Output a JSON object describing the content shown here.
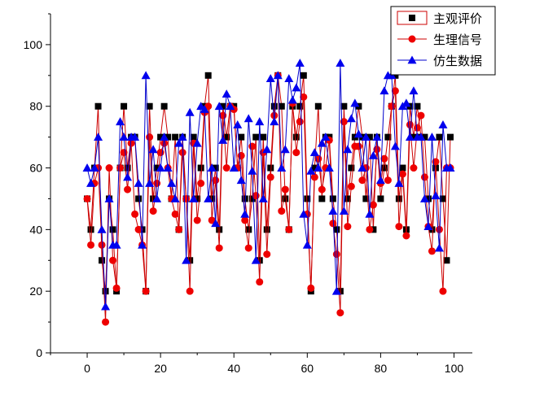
{
  "chart_data": {
    "type": "line",
    "title": "",
    "xlabel": "",
    "ylabel": "",
    "xlim": [
      -10,
      105
    ],
    "ylim": [
      0,
      110
    ],
    "x_ticks": [
      0,
      20,
      40,
      60,
      80,
      100
    ],
    "y_ticks": [
      0,
      20,
      40,
      60,
      80,
      100
    ],
    "grid": false,
    "legend_position": "top-right",
    "series": [
      {
        "name": "主观评价",
        "line_color": "#cc0000",
        "marker_color": "#000000",
        "marker": "square",
        "values": [
          50,
          40,
          60,
          80,
          30,
          20,
          50,
          40,
          20,
          60,
          80,
          60,
          70,
          70,
          50,
          40,
          20,
          80,
          50,
          60,
          70,
          80,
          70,
          50,
          70,
          40,
          70,
          50,
          30,
          70,
          50,
          60,
          80,
          90,
          50,
          60,
          40,
          80,
          70,
          80,
          80,
          60,
          70,
          50,
          40,
          50,
          70,
          30,
          70,
          40,
          60,
          80,
          90,
          80,
          50,
          40,
          80,
          70,
          80,
          90,
          50,
          20,
          60,
          80,
          50,
          70,
          70,
          50,
          40,
          20,
          80,
          50,
          60,
          70,
          80,
          70,
          50,
          70,
          40,
          70,
          50,
          60,
          70,
          80,
          90,
          50,
          60,
          40,
          80,
          70,
          80,
          70,
          70,
          50,
          40,
          60,
          70,
          50,
          30,
          70
        ]
      },
      {
        "name": "生理信号",
        "line_color": "#cc0000",
        "marker_color": "#ee0000",
        "marker": "circle",
        "values": [
          50,
          35,
          55,
          60,
          35,
          10,
          60,
          30,
          21,
          60,
          65,
          53,
          68,
          45,
          40,
          35,
          20,
          70,
          46,
          55,
          65,
          68,
          60,
          50,
          45,
          40,
          65,
          50,
          20,
          68,
          43,
          55,
          78,
          80,
          43,
          56,
          34,
          77,
          60,
          80,
          79,
          60,
          64,
          43,
          34,
          67,
          51,
          23,
          65,
          32,
          57,
          77,
          90,
          46,
          53,
          40,
          81,
          65,
          75,
          83,
          45,
          21,
          57,
          63,
          53,
          60,
          69,
          42,
          32,
          13,
          75,
          41,
          54,
          67,
          67,
          56,
          60,
          40,
          48,
          66,
          55,
          63,
          56,
          80,
          85,
          41,
          58,
          38,
          74,
          60,
          73,
          77,
          57,
          41,
          33,
          62,
          40,
          20,
          60,
          60
        ]
      },
      {
        "name": "仿生数据",
        "line_color": "#0000cc",
        "marker_color": "#0000ee",
        "marker": "triangle",
        "values": [
          60,
          55,
          60,
          70,
          40,
          15,
          50,
          35,
          35,
          75,
          70,
          57,
          70,
          70,
          55,
          35,
          90,
          55,
          66,
          50,
          60,
          70,
          60,
          55,
          50,
          68,
          70,
          30,
          78,
          50,
          68,
          80,
          79,
          50,
          60,
          42,
          80,
          69,
          84,
          80,
          60,
          74,
          56,
          45,
          76,
          59,
          30,
          75,
          50,
          66,
          89,
          75,
          90,
          60,
          66,
          89,
          82,
          86,
          94,
          45,
          35,
          59,
          65,
          60,
          68,
          70,
          60,
          46,
          20,
          94,
          46,
          66,
          76,
          81,
          71,
          60,
          70,
          45,
          64,
          70,
          56,
          85,
          90,
          90,
          67,
          55,
          80,
          81,
          70,
          85,
          70,
          70,
          50,
          41,
          70,
          51,
          34,
          74,
          60,
          60
        ]
      }
    ]
  }
}
